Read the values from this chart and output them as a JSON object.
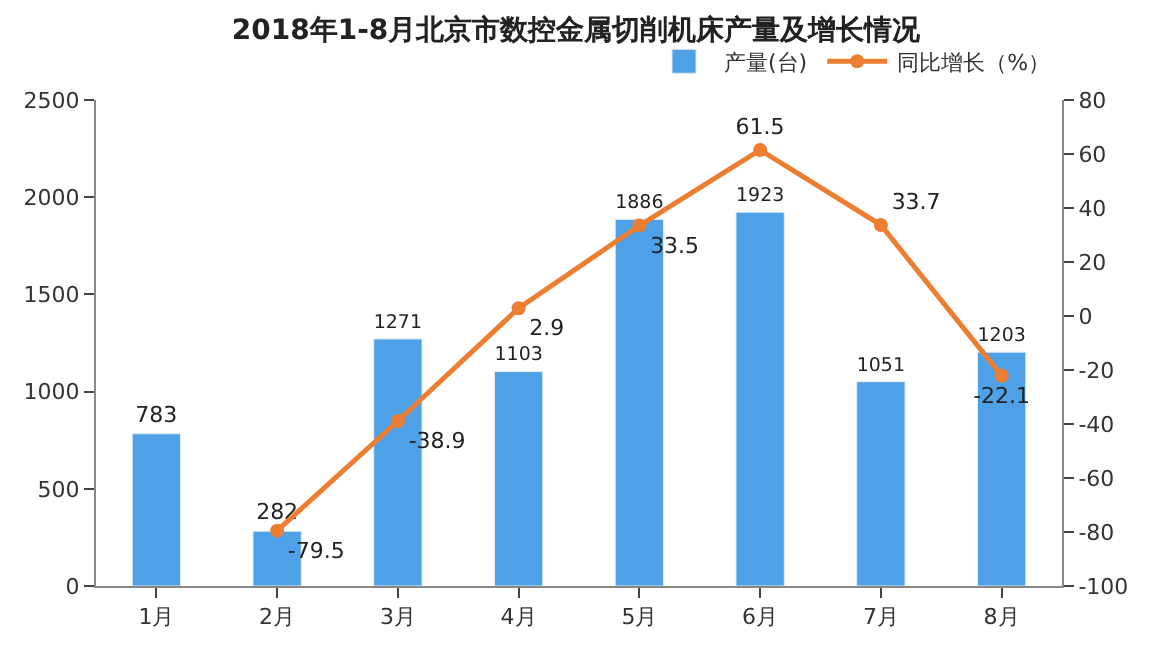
{
  "chart_data": {
    "type": "bar",
    "title": "2018年1-8月北京市数控金属切削机床产量及增长情况",
    "categories": [
      "1月",
      "2月",
      "3月",
      "4月",
      "5月",
      "6月",
      "7月",
      "8月"
    ],
    "series": [
      {
        "name": "产量(台)",
        "color": "#4ea1e6",
        "values": [
          783,
          282,
          1271,
          1103,
          1886,
          1923,
          1051,
          1203
        ]
      },
      {
        "name": "同比增长（%）",
        "type": "line",
        "axis": "y2",
        "color": "#ed7d31",
        "marker": "circle",
        "values": [
          null,
          -79.5,
          -38.9,
          2.9,
          33.5,
          61.5,
          33.7,
          -22.1
        ]
      }
    ],
    "ylim": [
      0,
      2500
    ],
    "yticks": [
      0,
      500,
      1000,
      1500,
      2000,
      2500
    ],
    "y2lim": [
      -100,
      80
    ],
    "y2ticks": [
      -100,
      -80,
      -60,
      -40,
      -20,
      0,
      20,
      40,
      60,
      80
    ],
    "data_labels": true,
    "legend": "top right"
  }
}
